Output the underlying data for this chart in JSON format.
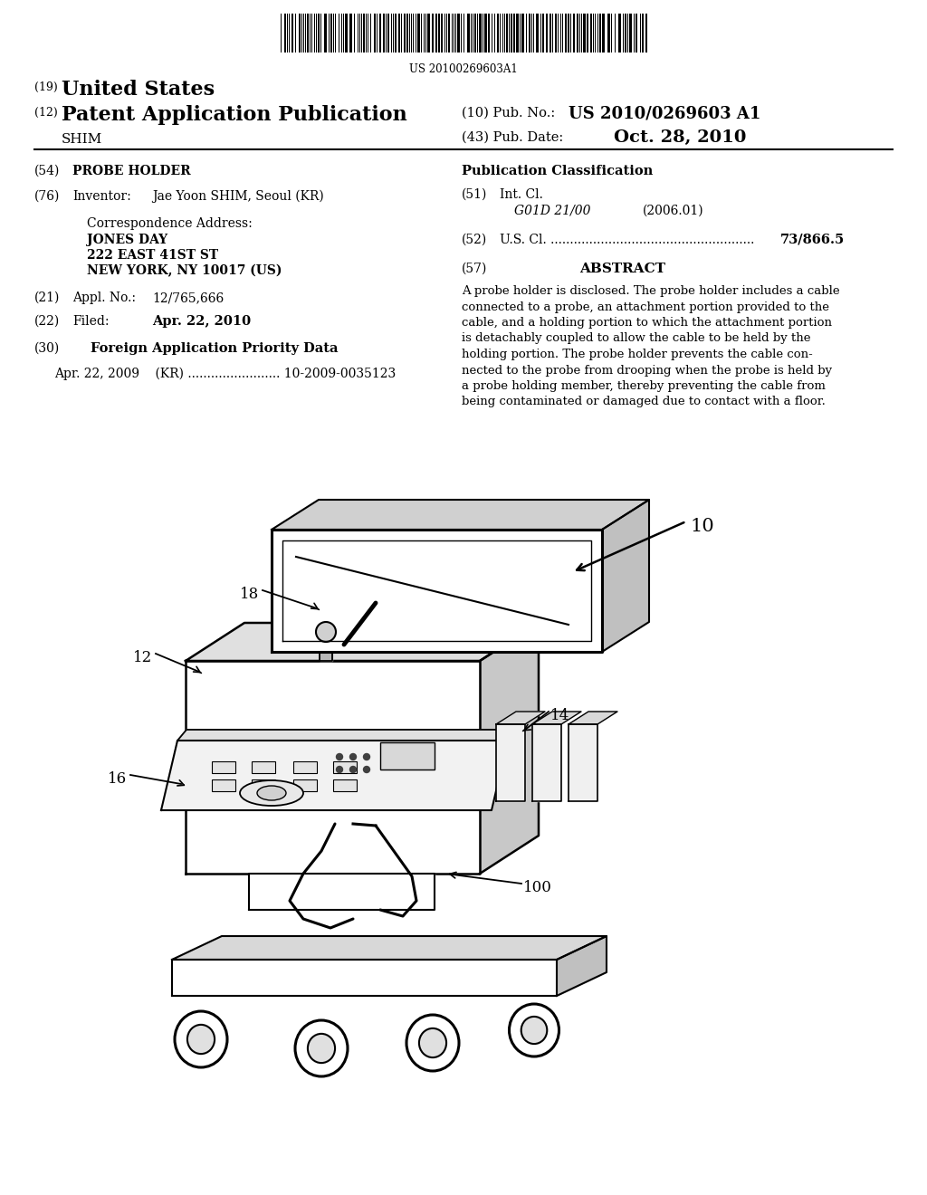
{
  "bg_color": "#ffffff",
  "page_width": 10.24,
  "page_height": 13.2,
  "barcode_text": "US 20100269603A1",
  "abstract_lines": [
    "A probe holder is disclosed. The probe holder includes a cable",
    "connected to a probe, an attachment portion provided to the",
    "cable, and a holding portion to which the attachment portion",
    "is detachably coupled to allow the cable to be held by the",
    "holding portion. The probe holder prevents the cable con-",
    "nected to the probe from drooping when the probe is held by",
    "a probe holding member, thereby preventing the cable from",
    "being contaminated or damaged due to contact with a floor."
  ]
}
